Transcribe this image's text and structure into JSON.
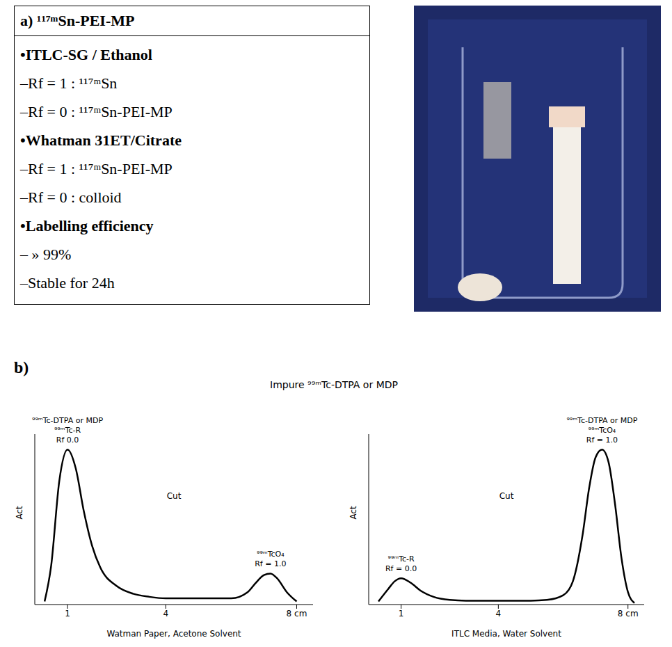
{
  "panel_a": {
    "letter": "a)",
    "title": "¹¹⁷ᵐSn-PEI-MP",
    "sections": [
      {
        "heading": "•ITLC-SG / Ethanol",
        "items": [
          "–Rf = 1 : ¹¹⁷ᵐSn",
          "–Rf = 0 : ¹¹⁷ᵐSn-PEI-MP"
        ]
      },
      {
        "heading": "•Whatman 31ET/Citrate",
        "items": [
          "–Rf = 1 : ¹¹⁷ᵐSn-PEI-MP",
          "–Rf = 0 : colloid"
        ]
      },
      {
        "heading": "•Labelling efficiency",
        "items": [
          "– » 99%",
          "–Stable for 24h"
        ]
      }
    ]
  },
  "panel_b": {
    "letter": "b)",
    "title": "Impure ⁹⁹ᵐTc-DTPA or MDP"
  },
  "chart_data": [
    {
      "type": "line",
      "x_label": "Watman Paper, Acetone Solvent",
      "y_label": "Act",
      "color": "#000000",
      "x": [
        0.3,
        0.5,
        0.75,
        1.0,
        1.25,
        1.5,
        1.75,
        2.0,
        2.5,
        3.0,
        3.5,
        4.0,
        4.5,
        5.0,
        5.5,
        6.0,
        6.5,
        6.75,
        7.0,
        7.2,
        7.4,
        7.7,
        8.0
      ],
      "values": [
        2,
        25,
        80,
        100,
        88,
        60,
        38,
        24,
        12,
        7,
        5,
        4,
        4,
        4,
        4,
        4,
        8,
        14,
        19,
        20,
        17,
        8,
        2
      ],
      "xlim": [
        0,
        8.5
      ],
      "xticks": [
        1,
        4,
        {
          "value": 8,
          "label": "8 cm"
        }
      ],
      "ylim": [
        0,
        110
      ],
      "tick_labels": "x",
      "annotations": [
        {
          "x": 1.0,
          "lines": [
            "⁹⁹ᵐTc-DTPA or MDP",
            "⁹⁹ᵐTc-R",
            "Rf 0.0"
          ]
        },
        {
          "x": 7.2,
          "lines": [
            "⁹⁹ᵐTcO₄",
            "Rf = 1.0"
          ]
        }
      ],
      "cut_label": "Cut"
    },
    {
      "type": "line",
      "x_label": "ITLC Media, Water Solvent",
      "y_label": "Act",
      "color": "#000000",
      "x": [
        0.3,
        0.6,
        0.8,
        1.0,
        1.3,
        1.6,
        2.0,
        2.5,
        3.0,
        4.0,
        5.0,
        5.5,
        6.0,
        6.3,
        6.6,
        6.8,
        7.0,
        7.2,
        7.4,
        7.6,
        7.8,
        8.0,
        8.2
      ],
      "values": [
        2,
        10,
        15,
        17,
        14,
        9,
        5,
        3,
        2.5,
        2.5,
        2.5,
        3,
        6,
        15,
        45,
        75,
        95,
        100,
        92,
        65,
        30,
        8,
        1
      ],
      "xlim": [
        0,
        8.5
      ],
      "xticks": [
        1,
        4,
        {
          "value": 8,
          "label": "8 cm"
        }
      ],
      "ylim": [
        0,
        110
      ],
      "tick_labels": "x",
      "annotations": [
        {
          "x": 1.0,
          "lines": [
            "⁹⁹ᵐTc-R",
            "Rf = 0.0"
          ]
        },
        {
          "x": 7.2,
          "lines": [
            "⁹⁹ᵐTc-DTPA or MDP",
            "⁹⁹ᵐTcO₄",
            "Rf = 1.0"
          ]
        }
      ],
      "cut_label": "Cut"
    }
  ]
}
